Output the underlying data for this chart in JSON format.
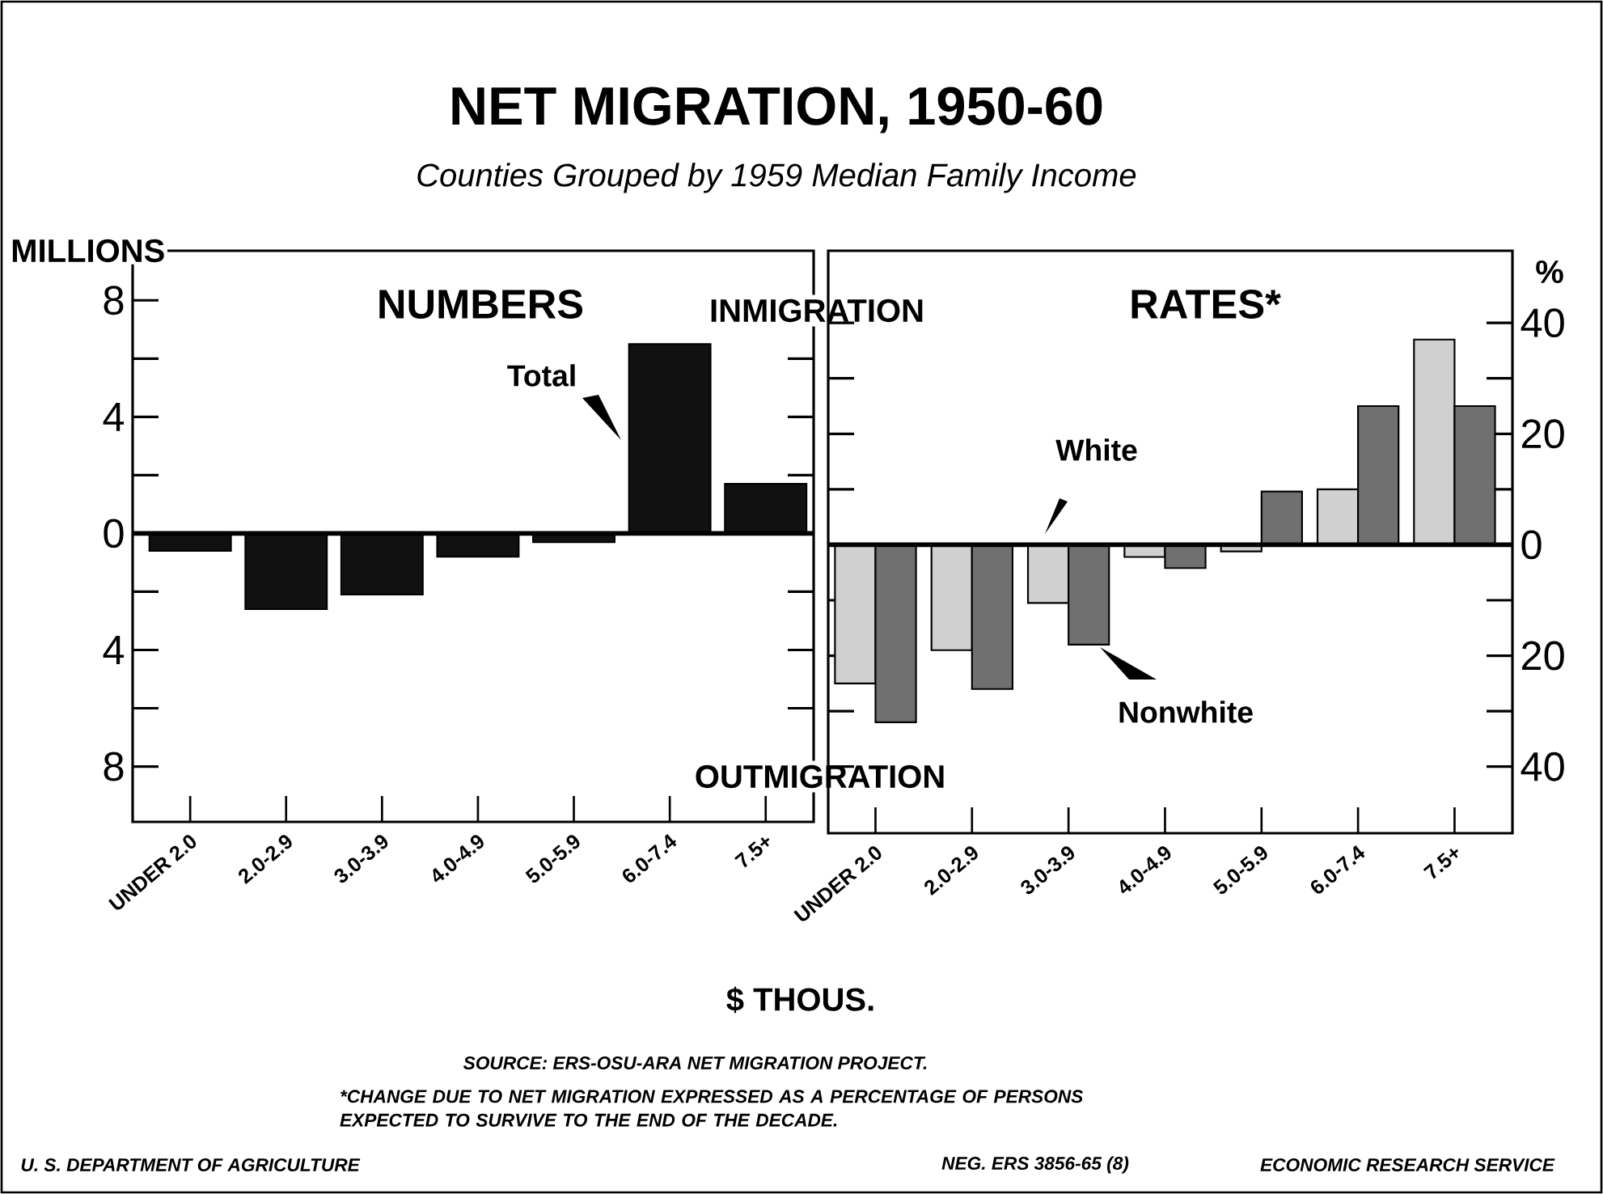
{
  "chart_data": [
    {
      "type": "bar",
      "title": "NET MIGRATION, 1950-60",
      "subtitle": "Counties Grouped by 1959 Median Family Income",
      "ylabel": "MILLIONS",
      "xlabel": "$ THOUS.",
      "categories": [
        "UNDER 2.0",
        "2.0-2.9",
        "3.0-3.9",
        "4.0-4.9",
        "5.0-5.9",
        "6.0-7.4",
        "7.5+"
      ],
      "series": [
        {
          "name": "Total",
          "color": "#111111",
          "values": [
            -0.6,
            -2.6,
            -2.1,
            -0.8,
            -0.3,
            6.5,
            1.7
          ]
        }
      ],
      "ylim": [
        -9.9,
        9.7
      ],
      "yticks": [
        {
          "value": -8,
          "label": "8"
        },
        {
          "value": -6,
          "label": null
        },
        {
          "value": -4,
          "label": "4"
        },
        {
          "value": -2,
          "label": null
        },
        0,
        {
          "value": 2,
          "label": null
        },
        4,
        {
          "value": 6,
          "label": null
        },
        8
      ],
      "annotations": [
        "NUMBERS",
        "INMIGRATION",
        "OUTMIGRATION",
        "SOURCE: ERS-OSU-ARA NET MIGRATION PROJECT.",
        "*CHANGE DUE TO NET MIGRATION EXPRESSED AS A PERCENTAGE OF PERSONS EXPECTED TO SURVIVE TO THE END OF THE DECADE.",
        "U. S. DEPARTMENT OF AGRICULTURE",
        "NEG. ERS 3856-65 (8)",
        "ECONOMIC RESEARCH SERVICE"
      ]
    },
    {
      "type": "bar",
      "ylabel": "%",
      "categories": [
        "UNDER 2.0",
        "2.0-2.9",
        "3.0-3.9",
        "4.0-4.9",
        "5.0-5.9",
        "6.0-7.4",
        "7.5+"
      ],
      "series": [
        {
          "name": "White",
          "color": "#d0d0d0",
          "values": [
            -25,
            -19,
            -10.5,
            -2.2,
            -1.2,
            10,
            37
          ]
        },
        {
          "name": "Nonwhite",
          "color": "#707070",
          "values": [
            -32,
            -26,
            -18,
            -4.2,
            9.6,
            25,
            25
          ]
        }
      ],
      "ylim": [
        -52,
        53
      ],
      "yticks": [
        {
          "value": -40,
          "label": "40"
        },
        {
          "value": -30,
          "label": null
        },
        {
          "value": -20,
          "label": "20"
        },
        {
          "value": -10,
          "label": null
        },
        0,
        {
          "value": 10,
          "label": null
        },
        20,
        {
          "value": 30,
          "label": null
        },
        40
      ],
      "annotations": [
        "RATES*"
      ]
    }
  ]
}
